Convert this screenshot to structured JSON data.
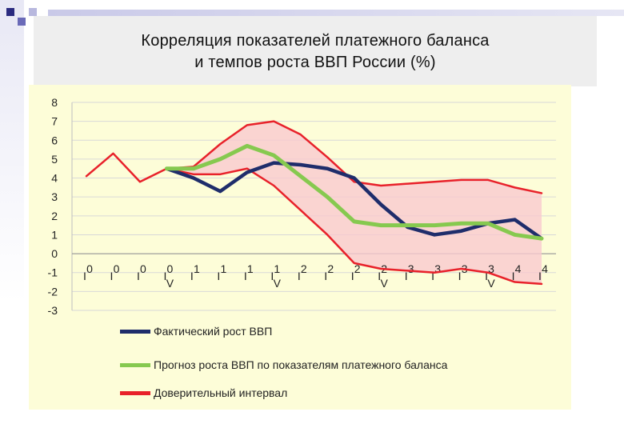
{
  "title_line1": "Корреляция показателей платежного баланса",
  "title_line2": "и темпов роста ВВП России (%)",
  "colors": {
    "actual": "#1f2d6b",
    "forecast": "#86c94f",
    "interval": "#e8212a",
    "band": "#f9c9cf",
    "plot_bg": "#fdfdd8"
  },
  "chart_data": {
    "type": "line",
    "title": "Корреляция показателей платежного баланса и темпов роста ВВП России (%)",
    "xlabel": "",
    "ylabel": "",
    "ylim": [
      -3,
      8
    ],
    "yticks": [
      "8",
      "7",
      "6",
      "5",
      "4",
      "3",
      "2",
      "1",
      "0",
      "-1",
      "-2",
      "-3"
    ],
    "grid": true,
    "legend_position": "bottom",
    "x_tick_labels": [
      [
        "0",
        "I"
      ],
      [
        "0",
        "I"
      ],
      [
        "0",
        "I"
      ],
      [
        "0",
        "I",
        "V"
      ],
      [
        "1",
        "I"
      ],
      [
        "1",
        "I"
      ],
      [
        "1",
        "I"
      ],
      [
        "1",
        "I",
        "V"
      ],
      [
        "2",
        "I"
      ],
      [
        "2",
        "I"
      ],
      [
        "2",
        "I"
      ],
      [
        "2",
        "I",
        "V"
      ],
      [
        "3",
        "I"
      ],
      [
        "3",
        "I"
      ],
      [
        "3",
        "I"
      ],
      [
        "3",
        "I",
        "V"
      ],
      [
        "4",
        "I"
      ],
      [
        "4",
        "I"
      ]
    ],
    "series": [
      {
        "name": "Фактический рост ВВП",
        "start_index": 3,
        "values": [
          4.5,
          4.0,
          3.3,
          4.3,
          4.8,
          4.7,
          4.5,
          4.0,
          2.6,
          1.4,
          1.0,
          1.2,
          1.6,
          1.8,
          0.8
        ]
      },
      {
        "name": "Прогноз роста ВВП по показателям платежного баланса",
        "start_index": 3,
        "values": [
          4.5,
          4.5,
          5.0,
          5.7,
          5.2,
          4.1,
          3.0,
          1.7,
          1.5,
          1.5,
          1.5,
          1.6,
          1.6,
          1.0,
          0.8
        ]
      },
      {
        "name": "Доверительный интервал",
        "role": "upper",
        "start_index": 0,
        "values": [
          4.1,
          5.3,
          3.8,
          4.5,
          4.6,
          5.8,
          6.8,
          7.0,
          6.3,
          5.1,
          3.8,
          3.6,
          3.7,
          3.8,
          3.9,
          3.9,
          3.5,
          3.2
        ]
      },
      {
        "name": "Доверительный интервал",
        "role": "lower",
        "start_index": 3,
        "values": [
          4.5,
          4.2,
          4.2,
          4.5,
          3.6,
          2.3,
          1.0,
          -0.5,
          -0.8,
          -0.9,
          -1.0,
          -0.8,
          -1.0,
          -1.5,
          -1.6
        ]
      }
    ]
  },
  "legend": [
    {
      "label": "Фактический рост ВВП",
      "color": "#1f2d6b"
    },
    {
      "label": "Прогноз роста ВВП по показателям платежного баланса",
      "color": "#86c94f"
    },
    {
      "label": "Доверительный интервал",
      "color": "#e8212a"
    }
  ]
}
